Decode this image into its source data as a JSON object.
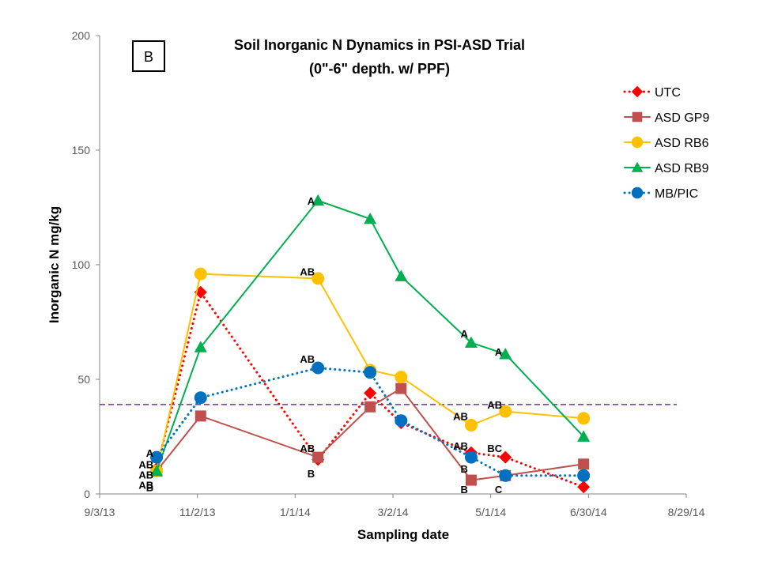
{
  "chart_data": {
    "type": "line",
    "title_line1": "Soil Inorganic N Dynamics in PSI-ASD Trial",
    "title_line2": "(0\"-6\" depth. w/ PPF)",
    "panel_label": "B",
    "xlabel": "Sampling date",
    "ylabel": "Inorganic N mg/kg",
    "ylim": [
      0,
      200
    ],
    "y_ticks": [
      0,
      50,
      100,
      150,
      200
    ],
    "x_ticks": [
      "9/3/13",
      "11/2/13",
      "1/1/14",
      "3/2/14",
      "5/1/14",
      "6/30/14",
      "8/29/14"
    ],
    "x_dates": [
      "2013-10-08",
      "2013-11-04",
      "2014-01-15",
      "2014-02-16",
      "2014-03-07",
      "2014-04-19",
      "2014-05-10",
      "2014-06-27"
    ],
    "threshold": 39,
    "threshold_color": "#7030A0",
    "grid": false,
    "legend_position": "right",
    "series": [
      {
        "name": "UTC",
        "color": "#FF0000",
        "line": "dotted",
        "marker": "diamond",
        "values": [
          11,
          88,
          15,
          44,
          31,
          18,
          16,
          3
        ]
      },
      {
        "name": "ASD GP9",
        "color": "#C0504D",
        "line": "solid",
        "marker": "square",
        "values": [
          10,
          34,
          16,
          38,
          46,
          6,
          8,
          13
        ]
      },
      {
        "name": "ASD RB6",
        "color": "#FFC000",
        "line": "solid",
        "marker": "circle",
        "values": [
          10,
          96,
          94,
          54,
          51,
          30,
          36,
          33
        ]
      },
      {
        "name": "ASD RB9",
        "color": "#00B050",
        "line": "solid",
        "marker": "triangle",
        "values": [
          10,
          64,
          128,
          120,
          95,
          66,
          61,
          25
        ]
      },
      {
        "name": "MB/PIC",
        "color": "#0070C0",
        "line": "dotted",
        "marker": "circle",
        "values": [
          16,
          42,
          55,
          53,
          32,
          16,
          8,
          8
        ]
      }
    ],
    "annotations": [
      {
        "text": "A",
        "point": 0,
        "value": 18
      },
      {
        "text": "AB",
        "point": 0,
        "value": 13
      },
      {
        "text": "AB",
        "point": 0,
        "value": 8.5
      },
      {
        "text": "AB",
        "point": 0,
        "value": 4
      },
      {
        "text": "B",
        "point": 0,
        "value": 3
      },
      {
        "text": "A",
        "point": 2,
        "value": 128
      },
      {
        "text": "AB",
        "point": 2,
        "value": 97
      },
      {
        "text": "AB",
        "point": 2,
        "value": 59
      },
      {
        "text": "AB",
        "point": 2,
        "value": 20
      },
      {
        "text": "B",
        "point": 2,
        "value": 9
      },
      {
        "text": "A",
        "point": 5,
        "value": 70
      },
      {
        "text": "AB",
        "point": 5,
        "value": 34
      },
      {
        "text": "AB",
        "point": 5,
        "value": 21
      },
      {
        "text": "B",
        "point": 5,
        "value": 11
      },
      {
        "text": "B",
        "point": 5,
        "value": 2
      },
      {
        "text": "A",
        "point": 6,
        "value": 62
      },
      {
        "text": "AB",
        "point": 6,
        "value": 39
      },
      {
        "text": "BC",
        "point": 6,
        "value": 20
      },
      {
        "text": "C",
        "point": 6,
        "value": 2
      }
    ]
  }
}
